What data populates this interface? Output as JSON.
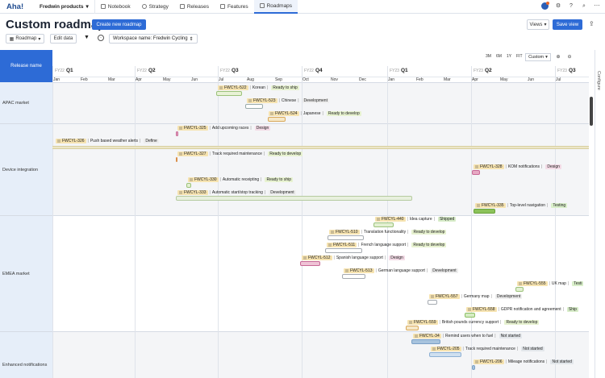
{
  "nav": {
    "logo": "Aha!",
    "product": "Fredwin products",
    "tabs": [
      "Notebook",
      "Strategy",
      "Releases",
      "Features",
      "Roadmaps"
    ],
    "active_tab": "Roadmaps"
  },
  "header": {
    "title": "Custom roadmap",
    "create_button": "Create new roadmap",
    "views_button": "Views",
    "save_button": "Save view"
  },
  "toolbar": {
    "roadmap": "Roadmap",
    "edit": "Edit data",
    "filter": "Workspace name: Fredwin Cycling"
  },
  "zoom": {
    "options": [
      "3M",
      "6M",
      "1Y",
      "FIT"
    ],
    "custom": "Custom"
  },
  "grid": {
    "release_header": "Release name",
    "configure": "Configure",
    "quarters": [
      {
        "fy": "FY22",
        "q": "Q1"
      },
      {
        "fy": "FY22",
        "q": "Q2"
      },
      {
        "fy": "FY22",
        "q": "Q3"
      },
      {
        "fy": "FY22",
        "q": "Q4"
      },
      {
        "fy": "FY23",
        "q": "Q1"
      },
      {
        "fy": "FY23",
        "q": "Q2"
      },
      {
        "fy": "FY23",
        "q": "Q3"
      }
    ],
    "months": [
      "Jan",
      "Feb",
      "Mar",
      "Apr",
      "May",
      "Jun",
      "Jul",
      "Aug",
      "Sep",
      "Oct",
      "Nov",
      "Dec",
      "Jan",
      "Feb",
      "Mar",
      "Apr",
      "May",
      "Jun",
      "Jul"
    ],
    "rows": [
      "APAC market",
      "Device integration",
      "EMEA market",
      "Enhanced notifications"
    ]
  },
  "records": [
    {
      "id": "FWCYL-522",
      "name": "Korean",
      "status": "Ready to ship",
      "st": "ready"
    },
    {
      "id": "FWCYL-523",
      "name": "Chinese",
      "status": "Development",
      "st": "dev"
    },
    {
      "id": "FWCYL-524",
      "name": "Japanese",
      "status": "Ready to develop",
      "st": "ready"
    },
    {
      "id": "FWCYL-325",
      "name": "Add upcoming races",
      "status": "Design",
      "st": "design"
    },
    {
      "id": "FWCYL-326",
      "name": "Push based weather alerts",
      "status": "Define",
      "st": "define"
    },
    {
      "id": "FWCYL-327",
      "name": "Track required maintenance",
      "status": "Ready to develop",
      "st": "ready"
    },
    {
      "id": "FWCYL-328",
      "name": "KOM notifications",
      "status": "Design",
      "st": "design"
    },
    {
      "id": "FWCYL-330",
      "name": "Automatic receipting",
      "status": "Ready to ship",
      "st": "ready"
    },
    {
      "id": "FWCYL-333",
      "name": "Automatic start/stop tracking",
      "status": "Development",
      "st": "dev"
    },
    {
      "id": "FWCYL-335",
      "name": "Top-level navigation",
      "status": "Testing",
      "st": "testing"
    },
    {
      "id": "FWCYL-440",
      "name": "Idea capture",
      "status": "Shipped",
      "st": "shipped"
    },
    {
      "id": "FWCYL-510",
      "name": "Translation functionality",
      "status": "Ready to develop",
      "st": "ready"
    },
    {
      "id": "FWCYL-511",
      "name": "French language support",
      "status": "Ready to develop",
      "st": "ready"
    },
    {
      "id": "FWCYL-512",
      "name": "Spanish language support",
      "status": "Design",
      "st": "design"
    },
    {
      "id": "FWCYL-513",
      "name": "German language support",
      "status": "Development",
      "st": "dev"
    },
    {
      "id": "FWCYL-555",
      "name": "UK map",
      "status": "Testi",
      "st": "testing"
    },
    {
      "id": "FWCYL-557",
      "name": "Germany map",
      "status": "Development",
      "st": "dev"
    },
    {
      "id": "FWCYL-558",
      "name": "GDPR notification and agreement",
      "status": "Ship",
      "st": "shipped"
    },
    {
      "id": "FWCYL-559",
      "name": "British pounds currency support",
      "status": "Ready to develop",
      "st": "ready"
    },
    {
      "id": "FWCYL-34",
      "name": "Remind users when to fuel",
      "status": "Not started",
      "st": "notstarted"
    },
    {
      "id": "FWCYL-205",
      "name": "Track required maintenance",
      "status": "Not started",
      "st": "notstarted"
    },
    {
      "id": "FWCYL-206",
      "name": "Mileage notifications",
      "status": "Not started",
      "st": "notstarted"
    }
  ],
  "colors": {
    "accent": "#2d6bd6",
    "left_column": "#e6eef9",
    "tag": "#f6e3b0"
  }
}
